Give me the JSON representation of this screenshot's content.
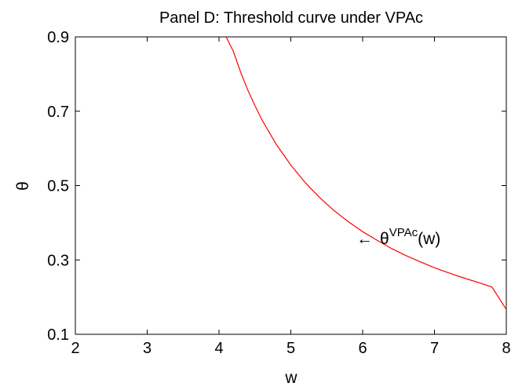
{
  "chart_data": {
    "type": "line",
    "title": "Panel D: Threshold curve under VPAc",
    "xlabel": "w",
    "ylabel": "θ",
    "xlim": [
      2,
      8
    ],
    "ylim": [
      0.1,
      0.9
    ],
    "xticks": [
      "2",
      "3",
      "4",
      "5",
      "6",
      "7",
      "8"
    ],
    "yticks": [
      "0.1",
      "0.3",
      "0.5",
      "0.7",
      "0.9"
    ],
    "grid": false,
    "series": [
      {
        "color": "#ff0000",
        "x": [
          4.1,
          4.2,
          4.3,
          4.4,
          4.5,
          4.6,
          4.8,
          5.0,
          5.2,
          5.4,
          5.6,
          5.8,
          6.0,
          6.2,
          6.4,
          6.6,
          6.8,
          7.0,
          7.2,
          7.4,
          7.6,
          7.8,
          8.0
        ],
        "y": [
          0.9,
          0.861,
          0.806,
          0.757,
          0.715,
          0.676,
          0.61,
          0.555,
          0.508,
          0.468,
          0.433,
          0.403,
          0.376,
          0.353,
          0.331,
          0.312,
          0.295,
          0.279,
          0.265,
          0.252,
          0.24,
          0.227,
          0.167
        ]
      }
    ],
    "annotation": {
      "arrow": "←",
      "base": "θ",
      "superscript": "VPAc",
      "suffix": "(w)",
      "points_to": {
        "x": 5.95,
        "y": 0.345
      }
    }
  }
}
